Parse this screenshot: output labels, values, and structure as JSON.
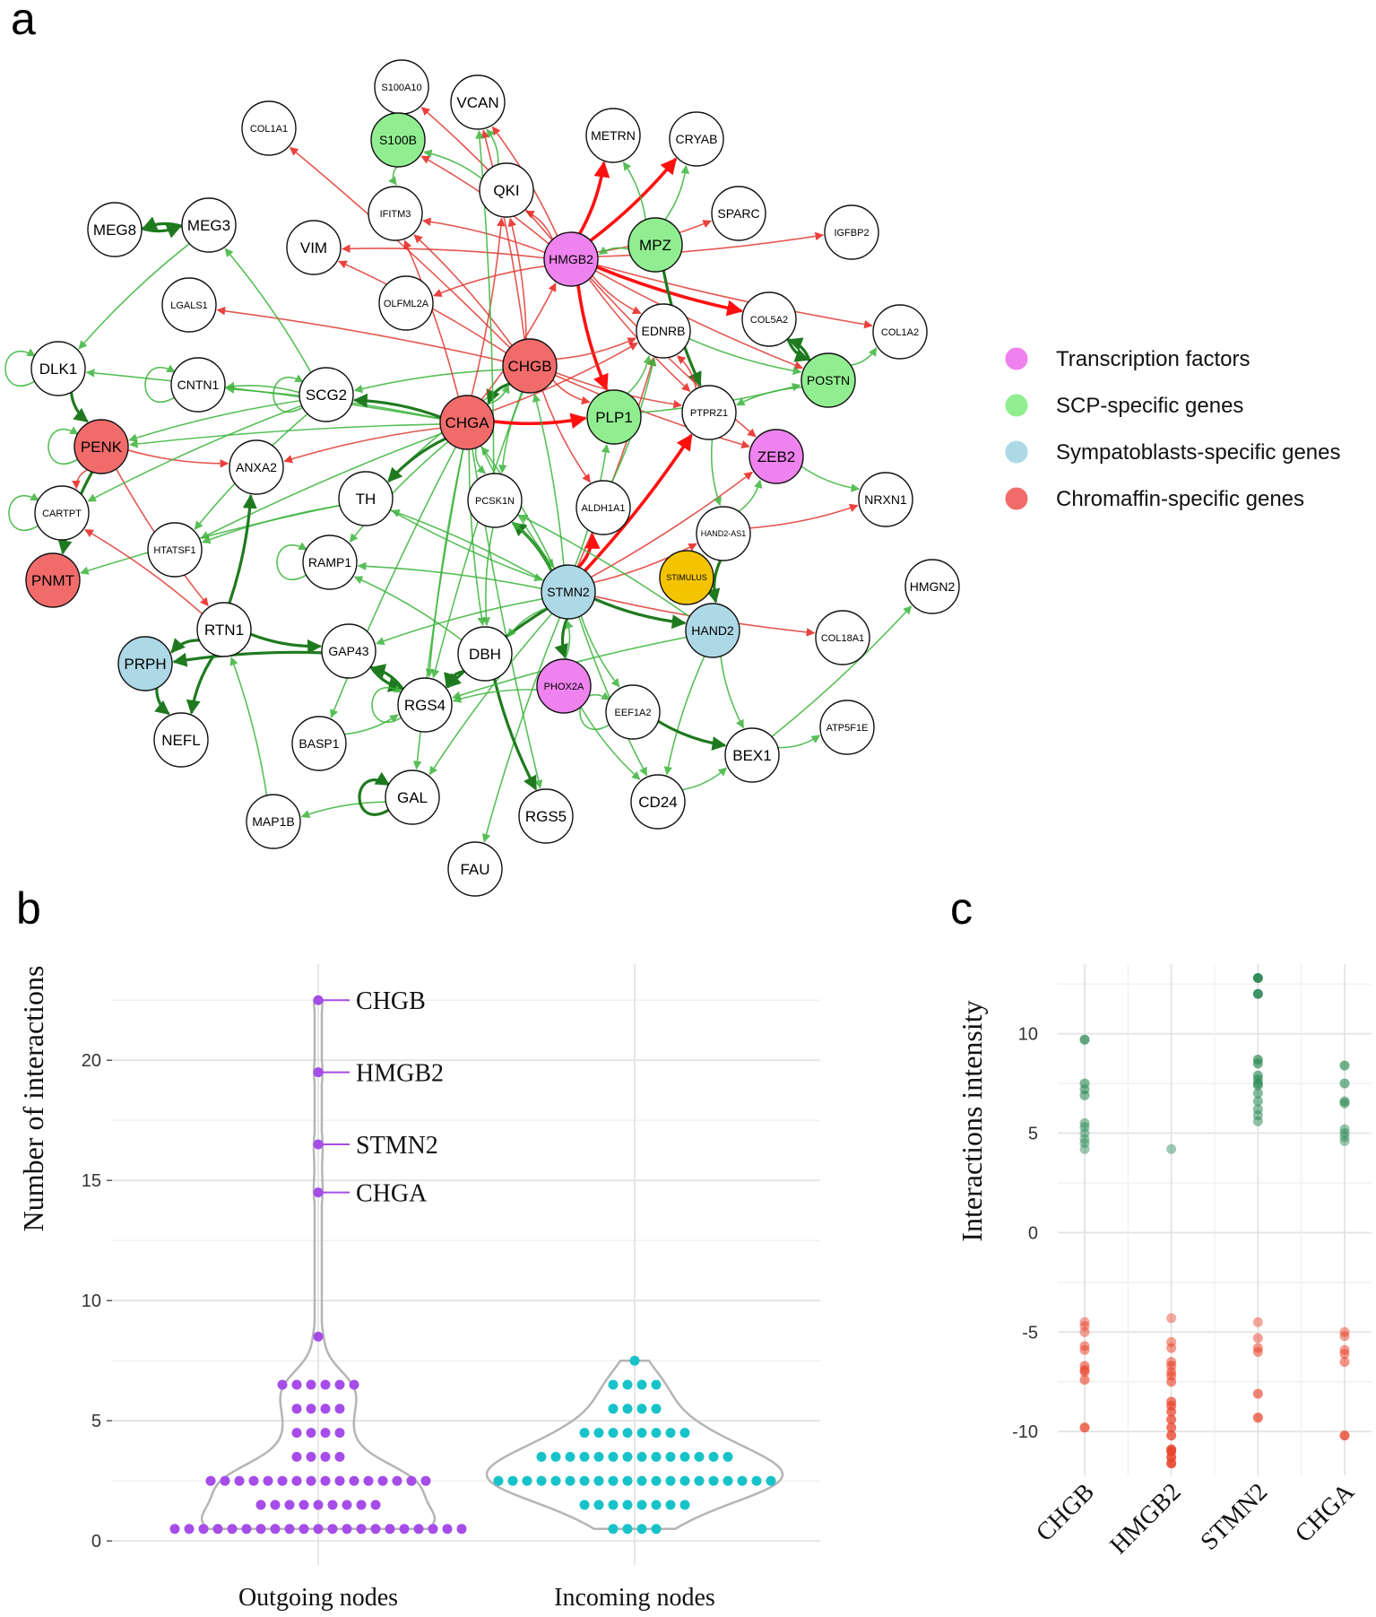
{
  "panel_a": {
    "letter": "a",
    "legend": [
      {
        "label": "Transcription factors",
        "color": "#ee82ee"
      },
      {
        "label": "SCP-specific genes",
        "color": "#90ee90"
      },
      {
        "label": "Sympatoblasts-specific genes",
        "color": "#add8e6"
      },
      {
        "label": "Chromaffin-specific genes",
        "color": "#f26b6b"
      }
    ],
    "nodes": [
      {
        "id": "S100A10",
        "cat": "none"
      },
      {
        "id": "VCAN",
        "cat": "none"
      },
      {
        "id": "COL1A1",
        "cat": "none"
      },
      {
        "id": "S100B",
        "cat": "scp"
      },
      {
        "id": "METRN",
        "cat": "none"
      },
      {
        "id": "CRYAB",
        "cat": "none"
      },
      {
        "id": "QKI",
        "cat": "none"
      },
      {
        "id": "SPARC",
        "cat": "none"
      },
      {
        "id": "IGFBP2",
        "cat": "none"
      },
      {
        "id": "MEG8",
        "cat": "none"
      },
      {
        "id": "MEG3",
        "cat": "none"
      },
      {
        "id": "IFITM3",
        "cat": "none"
      },
      {
        "id": "MPZ",
        "cat": "scp"
      },
      {
        "id": "HMGB2",
        "cat": "tf"
      },
      {
        "id": "VIM",
        "cat": "none"
      },
      {
        "id": "LGALS1",
        "cat": "none"
      },
      {
        "id": "OLFML2A",
        "cat": "none"
      },
      {
        "id": "COL5A2",
        "cat": "none"
      },
      {
        "id": "COL1A2",
        "cat": "none"
      },
      {
        "id": "EDNRB",
        "cat": "none"
      },
      {
        "id": "CHGB",
        "cat": "chrom"
      },
      {
        "id": "POSTN",
        "cat": "scp"
      },
      {
        "id": "DLK1",
        "cat": "none"
      },
      {
        "id": "CNTN1",
        "cat": "none"
      },
      {
        "id": "SCG2",
        "cat": "none"
      },
      {
        "id": "CHGA",
        "cat": "chrom"
      },
      {
        "id": "PLP1",
        "cat": "scp"
      },
      {
        "id": "PTPRZ1",
        "cat": "none"
      },
      {
        "id": "PENK",
        "cat": "chrom"
      },
      {
        "id": "ANXA2",
        "cat": "none"
      },
      {
        "id": "ZEB2",
        "cat": "tf"
      },
      {
        "id": "TH",
        "cat": "none"
      },
      {
        "id": "PCSK1N",
        "cat": "none"
      },
      {
        "id": "ALDH1A1",
        "cat": "none"
      },
      {
        "id": "NRXN1",
        "cat": "none"
      },
      {
        "id": "CARTPT",
        "cat": "none"
      },
      {
        "id": "HTATSF1",
        "cat": "none"
      },
      {
        "id": "HAND2-AS1",
        "cat": "none"
      },
      {
        "id": "RAMP1",
        "cat": "none"
      },
      {
        "id": "STIMULUS",
        "cat": "stim"
      },
      {
        "id": "PNMT",
        "cat": "chrom"
      },
      {
        "id": "STMN2",
        "cat": "symp"
      },
      {
        "id": "HMGN2",
        "cat": "none"
      },
      {
        "id": "RTN1",
        "cat": "none"
      },
      {
        "id": "HAND2",
        "cat": "symp"
      },
      {
        "id": "COL18A1",
        "cat": "none"
      },
      {
        "id": "PRPH",
        "cat": "symp"
      },
      {
        "id": "GAP43",
        "cat": "none"
      },
      {
        "id": "DBH",
        "cat": "none"
      },
      {
        "id": "PHOX2A",
        "cat": "tf"
      },
      {
        "id": "RGS4",
        "cat": "none"
      },
      {
        "id": "EEF1A2",
        "cat": "none"
      },
      {
        "id": "NEFL",
        "cat": "none"
      },
      {
        "id": "BASP1",
        "cat": "none"
      },
      {
        "id": "ATP5F1E",
        "cat": "none"
      },
      {
        "id": "BEX1",
        "cat": "none"
      },
      {
        "id": "GAL",
        "cat": "none"
      },
      {
        "id": "CD24",
        "cat": "none"
      },
      {
        "id": "MAP1B",
        "cat": "none"
      },
      {
        "id": "RGS5",
        "cat": "none"
      },
      {
        "id": "FAU",
        "cat": "none"
      }
    ],
    "edges": [
      [
        "HMGB2",
        "VIM",
        "r"
      ],
      [
        "HMGB2",
        "IFITM3",
        "r"
      ],
      [
        "HMGB2",
        "S100B",
        "r"
      ],
      [
        "HMGB2",
        "S100A10",
        "r"
      ],
      [
        "HMGB2",
        "VCAN",
        "r"
      ],
      [
        "HMGB2",
        "METRN",
        "r2"
      ],
      [
        "HMGB2",
        "CRYAB",
        "r2"
      ],
      [
        "HMGB2",
        "SPARC",
        "r"
      ],
      [
        "HMGB2",
        "IGFBP2",
        "r"
      ],
      [
        "HMGB2",
        "OLFML2A",
        "r"
      ],
      [
        "HMGB2",
        "EDNRB",
        "r"
      ],
      [
        "HMGB2",
        "COL5A2",
        "r2"
      ],
      [
        "HMGB2",
        "COL1A2",
        "r"
      ],
      [
        "HMGB2",
        "PLP1",
        "r2"
      ],
      [
        "HMGB2",
        "PTPRZ1",
        "r"
      ],
      [
        "HMGB2",
        "ZEB2",
        "r"
      ],
      [
        "HMGB2",
        "POSTN",
        "r"
      ],
      [
        "HMGB2",
        "QKI",
        "r"
      ],
      [
        "CHGB",
        "LGALS1",
        "r"
      ],
      [
        "CHGB",
        "IFITM3",
        "r"
      ],
      [
        "CHGB",
        "QKI",
        "r"
      ],
      [
        "CHGB",
        "VCAN",
        "r"
      ],
      [
        "CHGB",
        "COL1A1",
        "r"
      ],
      [
        "CHGB",
        "EDNRB",
        "r"
      ],
      [
        "CHGB",
        "PTPRZ1",
        "r"
      ],
      [
        "CHGB",
        "ZEB2",
        "r"
      ],
      [
        "CHGB",
        "ALDH1A1",
        "r"
      ],
      [
        "CHGB",
        "PLP1",
        "r"
      ],
      [
        "CHGB",
        "PCSK1N",
        "g"
      ],
      [
        "CHGB",
        "TH",
        "g"
      ],
      [
        "CHGB",
        "CHGA",
        "g2"
      ],
      [
        "CHGB",
        "SCG2",
        "g"
      ],
      [
        "CHGB",
        "RGS4",
        "g"
      ],
      [
        "CHGB",
        "VIM",
        "r"
      ],
      [
        "CHGA",
        "PLP1",
        "r2"
      ],
      [
        "CHGA",
        "ANXA2",
        "r"
      ],
      [
        "CHGA",
        "DLK1",
        "g"
      ],
      [
        "CHGA",
        "PENK",
        "g"
      ],
      [
        "CHGA",
        "CNTN1",
        "g"
      ],
      [
        "CHGA",
        "SCG2",
        "g2"
      ],
      [
        "CHGA",
        "TH",
        "g2"
      ],
      [
        "CHGA",
        "RAMP1",
        "g"
      ],
      [
        "CHGA",
        "HTATSF1",
        "g"
      ],
      [
        "CHGA",
        "PCSK1N",
        "g"
      ],
      [
        "CHGA",
        "STMN2",
        "g"
      ],
      [
        "CHGA",
        "DBH",
        "g"
      ],
      [
        "CHGA",
        "RGS4",
        "g"
      ],
      [
        "CHGA",
        "GAL",
        "g"
      ],
      [
        "CHGA",
        "RGS5",
        "g"
      ],
      [
        "CHGA",
        "BASP1",
        "g"
      ],
      [
        "CHGA",
        "CHGB",
        "g"
      ],
      [
        "CHGA",
        "QKI",
        "r"
      ],
      [
        "CHGA",
        "IFITM3",
        "r"
      ],
      [
        "CHGA",
        "HMGB2",
        "r"
      ],
      [
        "CHGA",
        "EDNRB",
        "r"
      ],
      [
        "STMN2",
        "RAMP1",
        "g"
      ],
      [
        "STMN2",
        "PCSK1N",
        "g2"
      ],
      [
        "STMN2",
        "PHOX2A",
        "g2"
      ],
      [
        "STMN2",
        "RGS4",
        "g2"
      ],
      [
        "STMN2",
        "DBH",
        "g"
      ],
      [
        "STMN2",
        "EEF1A2",
        "g"
      ],
      [
        "STMN2",
        "HAND2",
        "g2"
      ],
      [
        "STMN2",
        "CD24",
        "g"
      ],
      [
        "STMN2",
        "GAP43",
        "g"
      ],
      [
        "STMN2",
        "FAU",
        "g"
      ],
      [
        "STMN2",
        "TH",
        "g"
      ],
      [
        "STMN2",
        "CHGA",
        "g"
      ],
      [
        "STMN2",
        "PLP1",
        "g"
      ],
      [
        "STMN2",
        "ALDH1A1",
        "r2"
      ],
      [
        "STMN2",
        "EDNRB",
        "r"
      ],
      [
        "STMN2",
        "PTPRZ1",
        "r2"
      ],
      [
        "STMN2",
        "ZEB2",
        "r"
      ],
      [
        "STMN2",
        "COL18A1",
        "r"
      ],
      [
        "STMN2",
        "HAND2-AS1",
        "r"
      ],
      [
        "STMN2",
        "GAL",
        "g"
      ],
      [
        "STMN2",
        "PCSK1N",
        "g"
      ],
      [
        "PENK",
        "ANXA2",
        "r"
      ],
      [
        "PENK",
        "RTN1",
        "r"
      ],
      [
        "PENK",
        "CARTPT",
        "r"
      ],
      [
        "PENK",
        "PNMT",
        "g2"
      ],
      [
        "DLK1",
        "PENK",
        "g2"
      ],
      [
        "MEG8",
        "MEG3",
        "g2"
      ],
      [
        "MEG3",
        "MEG8",
        "g2"
      ],
      [
        "MEG3",
        "DLK1",
        "g"
      ],
      [
        "SCG2",
        "MEG3",
        "g"
      ],
      [
        "SCG2",
        "CNTN1",
        "g"
      ],
      [
        "SCG2",
        "PENK",
        "g"
      ],
      [
        "SCG2",
        "CARTPT",
        "g"
      ],
      [
        "SCG2",
        "HTATSF1",
        "g"
      ],
      [
        "TH",
        "PNMT",
        "g"
      ],
      [
        "TH",
        "HTATSF1",
        "g"
      ],
      [
        "RTN1",
        "PRPH",
        "g2"
      ],
      [
        "RTN1",
        "NEFL",
        "g2"
      ],
      [
        "RTN1",
        "GAP43",
        "g2"
      ],
      [
        "RTN1",
        "ANXA2",
        "g2"
      ],
      [
        "RTN1",
        "CARTPT",
        "r"
      ],
      [
        "GAP43",
        "RGS4",
        "g2"
      ],
      [
        "GAP43",
        "PRPH",
        "g2"
      ],
      [
        "PRPH",
        "NEFL",
        "g2"
      ],
      [
        "DBH",
        "RGS4",
        "g2"
      ],
      [
        "DBH",
        "RGS5",
        "g2"
      ],
      [
        "DBH",
        "RAMP1",
        "g"
      ],
      [
        "PHOX2A",
        "RGS4",
        "g"
      ],
      [
        "PHOX2A",
        "CD24",
        "g"
      ],
      [
        "PHOX2A",
        "STMN2",
        "g"
      ],
      [
        "HAND2",
        "BEX1",
        "g"
      ],
      [
        "HAND2",
        "CD24",
        "g"
      ],
      [
        "HAND2",
        "RGS4",
        "g"
      ],
      [
        "HAND2",
        "PCSK1N",
        "g"
      ],
      [
        "BEX1",
        "ATP5F1E",
        "g"
      ],
      [
        "BEX1",
        "HMGN2",
        "g"
      ],
      [
        "CD24",
        "BEX1",
        "g"
      ],
      [
        "EEF1A2",
        "BEX1",
        "g2"
      ],
      [
        "GAL",
        "MAP1B",
        "g"
      ],
      [
        "MAP1B",
        "RTN1",
        "g"
      ],
      [
        "BASP1",
        "RGS4",
        "g"
      ],
      [
        "RGS4",
        "GAP43",
        "g2"
      ],
      [
        "QKI",
        "S100B",
        "g"
      ],
      [
        "QKI",
        "VCAN",
        "g"
      ],
      [
        "S100B",
        "S100A10",
        "g"
      ],
      [
        "S100A10",
        "S100B",
        "g"
      ],
      [
        "S100B",
        "IFITM3",
        "g"
      ],
      [
        "MPZ",
        "METRN",
        "g"
      ],
      [
        "MPZ",
        "CRYAB",
        "g"
      ],
      [
        "MPZ",
        "HMGB2",
        "g"
      ],
      [
        "MPZ",
        "PTPRZ1",
        "g2"
      ],
      [
        "POSTN",
        "COL5A2",
        "g2"
      ],
      [
        "POSTN",
        "COL1A2",
        "g"
      ],
      [
        "POSTN",
        "PTPRZ1",
        "g"
      ],
      [
        "COL5A2",
        "POSTN",
        "g2"
      ],
      [
        "EDNRB",
        "POSTN",
        "g"
      ],
      [
        "PLP1",
        "EDNRB",
        "g"
      ],
      [
        "PLP1",
        "POSTN",
        "g"
      ],
      [
        "ZEB2",
        "NRXN1",
        "g"
      ],
      [
        "PTPRZ1",
        "HAND2-AS1",
        "g"
      ],
      [
        "HAND2-AS1",
        "ZEB2",
        "g"
      ],
      [
        "HAND2-AS1",
        "HAND2",
        "g2"
      ],
      [
        "HAND2-AS1",
        "NRXN1",
        "r"
      ],
      [
        "PCSK1N",
        "VCAN",
        "g"
      ],
      [
        "ALDH1A1",
        "EDNRB",
        "g"
      ],
      [
        "PTPRZ1",
        "EDNRB",
        "r"
      ],
      [
        "SCG2",
        "SCG2",
        "g"
      ],
      [
        "CNTN1",
        "CNTN1",
        "g"
      ],
      [
        "CARTPT",
        "CARTPT",
        "g"
      ],
      [
        "RAMP1",
        "RAMP1",
        "g"
      ],
      [
        "GAL",
        "GAL",
        "g2"
      ],
      [
        "RGS4",
        "RGS4",
        "g"
      ],
      [
        "EEF1A2",
        "EEF1A2",
        "g"
      ],
      [
        "DLK1",
        "DLK1",
        "g"
      ],
      [
        "PENK",
        "PENK",
        "g"
      ],
      [
        "PCSK1N",
        "DBH",
        "g"
      ],
      [
        "TH",
        "STMN2",
        "g"
      ],
      [
        "STMN2",
        "CHGB",
        "g"
      ]
    ]
  },
  "panel_b": {
    "letter": "b",
    "chart_data": {
      "type": "scatter",
      "subtype": "violin-with-jittered-points",
      "ylabel": "Number of interactions",
      "ylim": [
        -1,
        24
      ],
      "yticks": [
        0,
        5,
        10,
        15,
        20
      ],
      "ytick_labels": [
        "0",
        "5",
        "10",
        "15",
        "20"
      ],
      "grid": true,
      "series": [
        {
          "name": "Outgoing nodes",
          "color": "#a64ce8",
          "values": [
            1,
            1,
            1,
            1,
            1,
            1,
            1,
            1,
            1,
            1,
            1,
            1,
            1,
            1,
            1,
            1,
            1,
            1,
            1,
            1,
            1,
            2,
            2,
            2,
            2,
            2,
            2,
            2,
            2,
            2,
            3,
            3,
            3,
            3,
            3,
            3,
            3,
            3,
            3,
            3,
            3,
            3,
            3,
            3,
            3,
            3,
            4,
            4,
            4,
            4,
            5,
            5,
            5,
            5,
            6,
            6,
            6,
            6,
            7,
            7,
            7,
            7,
            7,
            7,
            9,
            15,
            17,
            20,
            23
          ],
          "labeled_points": [
            {
              "label": "CHGB",
              "value": 23
            },
            {
              "label": "HMGB2",
              "value": 20
            },
            {
              "label": "STMN2",
              "value": 17
            },
            {
              "label": "CHGA",
              "value": 15
            }
          ]
        },
        {
          "name": "Incoming nodes",
          "color": "#17c3c8",
          "values": [
            1,
            1,
            1,
            1,
            2,
            2,
            2,
            2,
            2,
            2,
            2,
            2,
            3,
            3,
            3,
            3,
            3,
            3,
            3,
            3,
            3,
            3,
            3,
            3,
            3,
            3,
            3,
            3,
            3,
            3,
            3,
            3,
            4,
            4,
            4,
            4,
            4,
            4,
            4,
            4,
            4,
            4,
            4,
            4,
            4,
            4,
            5,
            5,
            5,
            5,
            5,
            5,
            5,
            5,
            6,
            6,
            6,
            6,
            7,
            7,
            7,
            7,
            8
          ]
        }
      ]
    }
  },
  "panel_c": {
    "letter": "c",
    "chart_data": {
      "type": "scatter",
      "ylabel": "Interactions intensity",
      "ylim": [
        -12.2,
        13.5
      ],
      "yticks": [
        10,
        5,
        0,
        -5,
        -10
      ],
      "ytick_labels": [
        "10",
        "5",
        "0",
        "-5",
        "-10"
      ],
      "categories": [
        "CHGB",
        "HMGB2",
        "STMN2",
        "CHGA"
      ],
      "grid": true,
      "positive_color": "#2e8b57",
      "negative_color": "#e8442b",
      "series": [
        {
          "name": "CHGB",
          "values": [
            9.7,
            7.5,
            7.2,
            6.9,
            5.5,
            5.3,
            5.0,
            4.7,
            4.5,
            4.2,
            -4.5,
            -4.7,
            -5.0,
            -5.7,
            -5.9,
            -6.7,
            -6.9,
            -7.0,
            -7.4,
            -9.8
          ]
        },
        {
          "name": "HMGB2",
          "values": [
            4.2,
            -4.3,
            -5.5,
            -5.8,
            -6.5,
            -6.7,
            -7.0,
            -7.2,
            -7.5,
            -8.5,
            -8.7,
            -9.0,
            -9.4,
            -9.8,
            -10.2,
            -10.9,
            -11.0,
            -11.3,
            -11.6
          ]
        },
        {
          "name": "STMN2",
          "values": [
            12.8,
            12.0,
            8.7,
            8.5,
            7.9,
            7.7,
            7.5,
            7.4,
            7.0,
            6.6,
            6.2,
            5.9,
            5.6,
            -4.5,
            -5.3,
            -5.8,
            -6.0,
            -8.1,
            -9.3
          ]
        },
        {
          "name": "CHGA",
          "values": [
            8.4,
            7.5,
            6.6,
            6.5,
            5.2,
            5.0,
            4.8,
            4.6,
            -5.0,
            -5.2,
            -5.9,
            -6.1,
            -6.5,
            -10.2
          ]
        }
      ]
    }
  }
}
